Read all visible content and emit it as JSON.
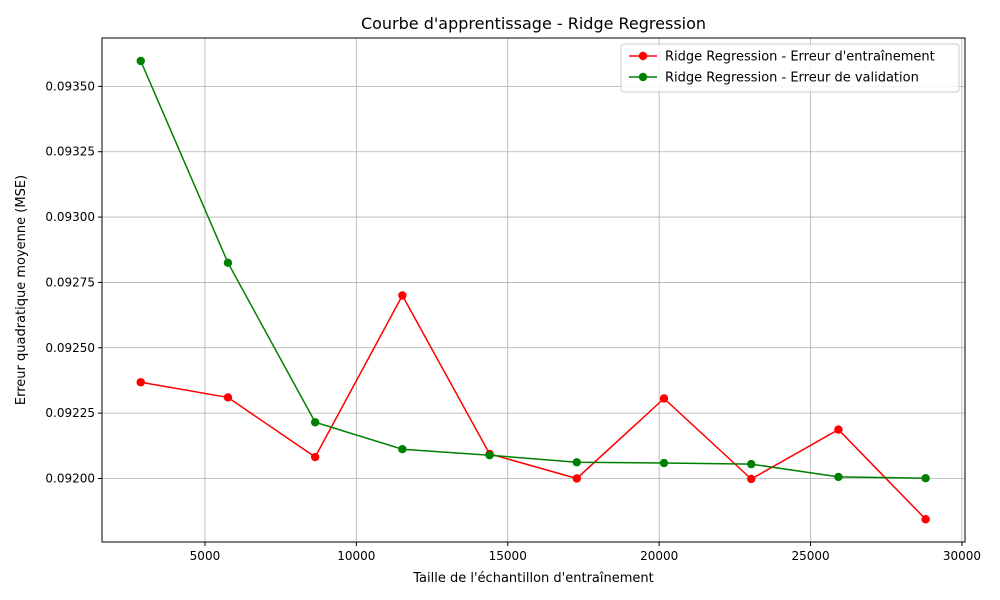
{
  "chart_data": {
    "type": "line",
    "title": "Courbe d'apprentissage - Ridge Regression",
    "xlabel": "Taille de l'échantillon d'entraînement",
    "ylabel": "Erreur quadratique moyenne (MSE)",
    "xlim": [
      1600,
      30100
    ],
    "ylim": [
      0.091757,
      0.093685
    ],
    "xticks": [
      5000,
      10000,
      15000,
      20000,
      25000,
      30000
    ],
    "yticks": [
      0.092,
      0.09225,
      0.0925,
      0.09275,
      0.093,
      0.09325,
      0.0935
    ],
    "xtick_labels": [
      "5000",
      "10000",
      "15000",
      "20000",
      "25000",
      "30000"
    ],
    "ytick_labels": [
      "0.09200",
      "0.09225",
      "0.09250",
      "0.09275",
      "0.09300",
      "0.09325",
      "0.09350"
    ],
    "grid": true,
    "legend_position": "top-right",
    "x": [
      2880,
      5760,
      8640,
      11520,
      14400,
      17280,
      20160,
      23040,
      25920,
      28800
    ],
    "series": [
      {
        "name": "Ridge Regression - Erreur d'entraînement",
        "color": "#ff0000",
        "values": [
          0.092368,
          0.09231,
          0.092082,
          0.0927,
          0.092094,
          0.092,
          0.092306,
          0.091998,
          0.092187,
          0.091844
        ]
      },
      {
        "name": "Ridge Regression - Erreur de validation",
        "color": "#008000",
        "values": [
          0.093597,
          0.092825,
          0.092215,
          0.092112,
          0.092089,
          0.092062,
          0.092059,
          0.092055,
          0.092006,
          0.092001
        ]
      }
    ]
  }
}
